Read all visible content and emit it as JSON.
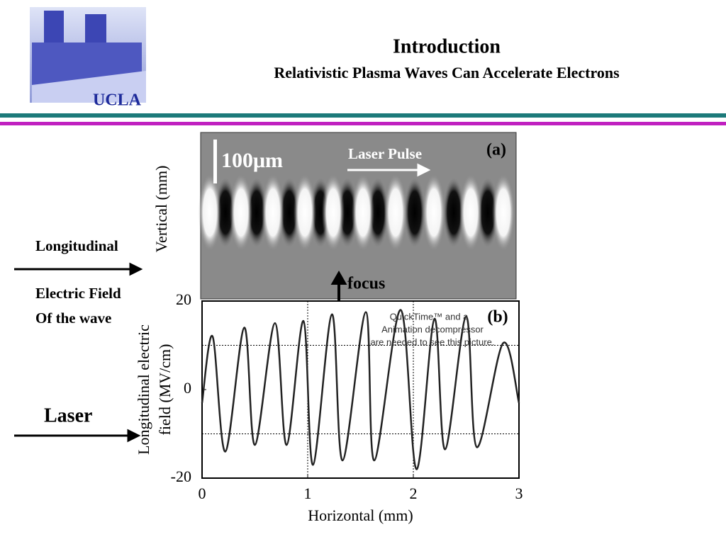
{
  "header": {
    "logo_text": "UCLA",
    "title": "Introduction",
    "subtitle": "Relativistic Plasma Waves Can Accelerate Electrons"
  },
  "side_labels": {
    "longitudinal": "Longitudinal",
    "electric_field": [
      "Electric Field",
      "Of the wave"
    ],
    "laser": "Laser"
  },
  "image_a": {
    "scale_bar": "100μm",
    "laser_pulse": "Laser Pulse",
    "panel": "(a)",
    "ylabel": "Vertical (mm)",
    "focus": "focus"
  },
  "placeholder": [
    "QuickTime™ and a",
    "Animation decompressor",
    "are needed to see this picture."
  ],
  "chart_data": {
    "type": "line",
    "panel": "(b)",
    "xlabel": "Horizontal (mm)",
    "ylabel": [
      "Longitudinal electric",
      "field (MV/cm)"
    ],
    "x": [
      0,
      0.1,
      0.22,
      0.4,
      0.5,
      0.69,
      0.8,
      0.96,
      1.05,
      1.23,
      1.33,
      1.55,
      1.63,
      1.88,
      2.03,
      2.2,
      2.3,
      2.5,
      2.6,
      2.85,
      3
    ],
    "series": [
      {
        "name": "field",
        "color": "#222222",
        "values": [
          -3,
          12,
          -14,
          14,
          -12.5,
          15,
          -12.5,
          15.5,
          -17,
          17,
          -16,
          17.5,
          -16,
          18,
          -18,
          16,
          -13.5,
          16.5,
          -13,
          10.5,
          -3
        ]
      }
    ],
    "xlim": [
      0,
      3
    ],
    "ylim": [
      -20,
      20
    ],
    "xticks": [
      0,
      1,
      2,
      3
    ],
    "yticks": [
      -20,
      0,
      20
    ],
    "grid_x": [
      1,
      2
    ],
    "grid_y": [
      -10,
      10
    ]
  }
}
